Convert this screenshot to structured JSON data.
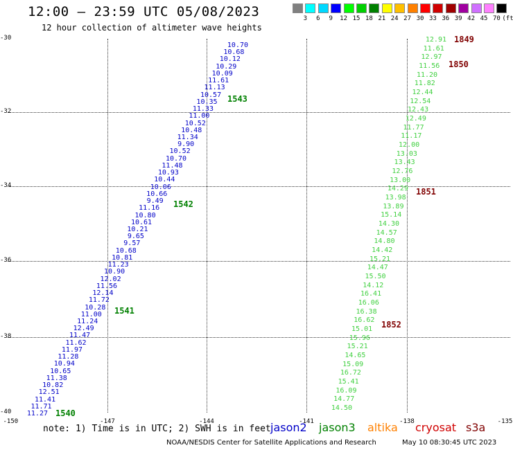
{
  "title": "12:00 – 23:59 UTC 05/08/2023",
  "subtitle": "12 hour collection of altimeter wave heights",
  "legend": {
    "colors": [
      "#808080",
      "#00ffff",
      "#00d8ff",
      "#0000ff",
      "#00ff00",
      "#00d000",
      "#008000",
      "#ffff00",
      "#ffc000",
      "#ff8000",
      "#ff0000",
      "#d00000",
      "#a00000",
      "#a000a0",
      "#d070ff",
      "#ff80ff",
      "#000000"
    ],
    "labels": [
      "3",
      "6",
      "9",
      "12",
      "15",
      "18",
      "21",
      "24",
      "27",
      "30",
      "33",
      "36",
      "39",
      "42",
      "45",
      "70"
    ],
    "unit": "(ft)"
  },
  "axes": {
    "lat_labels": [
      "-30",
      "-32",
      "-34",
      "-36",
      "-38",
      "-40"
    ],
    "lon_labels": [
      "-150",
      "-147",
      "-144",
      "-141",
      "-138",
      "-135"
    ]
  },
  "track_colors": {
    "blue": "#0000c8",
    "green": "#40d040",
    "pass": "#008000",
    "s3a_pass": "#800000"
  },
  "tracks": [
    {
      "color": "blue",
      "values": [
        "10.70",
        "10.68",
        "10.12",
        "10.29",
        "10.09",
        "11.61",
        "11.13",
        "10.57",
        "10.35",
        "11.33",
        "11.00",
        "10.52",
        "10.48",
        "11.34",
        "9.90",
        "10.52",
        "10.70",
        "11.48",
        "10.93",
        "10.44",
        "10.06",
        "10.66",
        "9.49",
        "11.16",
        "10.80",
        "10.61",
        "10.21",
        "9.65",
        "9.57",
        "10.68",
        "10.81",
        "11.23",
        "10.90",
        "12.02",
        "11.56",
        "12.14",
        "11.72",
        "10.28",
        "11.00",
        "11.24",
        "12.49",
        "11.47",
        "11.62",
        "11.97",
        "11.28",
        "10.94",
        "10.65",
        "11.38",
        "10.82",
        "12.51",
        "11.41",
        "11.71",
        "11.27"
      ]
    },
    {
      "color": "green",
      "values": [
        "12.91",
        "11.61",
        "12.97",
        "11.56",
        "11.20",
        "11.82",
        "12.44",
        "12.54",
        "12.43",
        "12.49",
        "11.77",
        "11.17",
        "12.00",
        "13.03",
        "13.43",
        "12.76",
        "13.00",
        "14.29",
        "13.98",
        "13.89",
        "15.14",
        "14.30",
        "14.57",
        "14.80",
        "14.42",
        "15.21",
        "14.47",
        "15.50",
        "14.12",
        "16.41",
        "16.06",
        "16.38",
        "16.62",
        "15.01",
        "15.96",
        "15.21",
        "14.65",
        "15.09",
        "16.72",
        "15.41",
        "16.09",
        "14.77",
        "14.50"
      ]
    }
  ],
  "passes": [
    {
      "label": "1543",
      "color": "pass"
    },
    {
      "label": "1542",
      "color": "pass"
    },
    {
      "label": "1541",
      "color": "pass"
    },
    {
      "label": "1540",
      "color": "pass"
    },
    {
      "label": "1849",
      "color": "s3a_pass"
    },
    {
      "label": "1850",
      "color": "s3a_pass"
    },
    {
      "label": "1851",
      "color": "s3a_pass"
    },
    {
      "label": "1852",
      "color": "s3a_pass"
    }
  ],
  "note": "note: 1) Time is in UTC; 2) SWH is in feet",
  "satellites": [
    {
      "name": "jason2",
      "color": "#0000c8"
    },
    {
      "name": "jason3",
      "color": "#008000"
    },
    {
      "name": "altika",
      "color": "#ff8000"
    },
    {
      "name": "cryosat",
      "color": "#d00000"
    },
    {
      "name": "s3a",
      "color": "#800000"
    }
  ],
  "footer_left": "NOAA/NESDIS Center for Satellite Applications and Research",
  "footer_right": "May 10 08:30:45 UTC 2023"
}
